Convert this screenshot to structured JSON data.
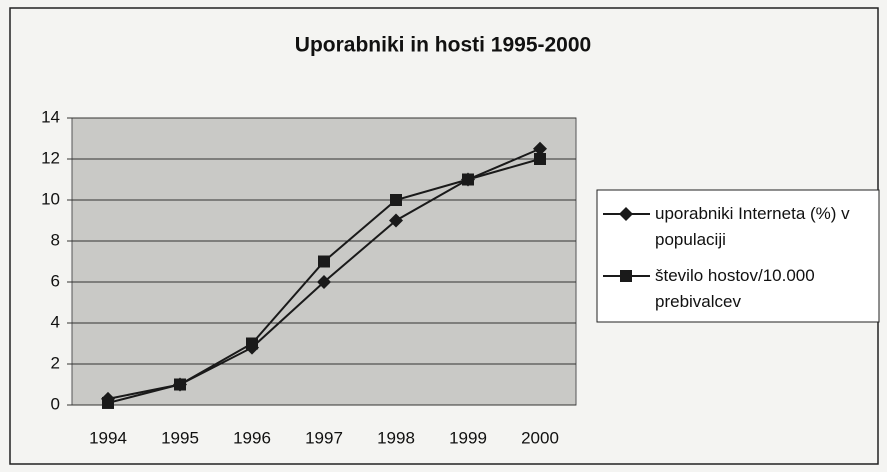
{
  "chart_data": {
    "type": "line",
    "title": "Uporabniki in hosti 1995-2000",
    "categories": [
      "1994",
      "1995",
      "1996",
      "1997",
      "1998",
      "1999",
      "2000"
    ],
    "series": [
      {
        "name": "uporabniki Interneta (%) v populaciji",
        "color": "#1a1a1a",
        "marker": "diamond",
        "values": [
          0.3,
          1,
          2.8,
          6,
          9,
          11,
          12.5
        ]
      },
      {
        "name": "število hostov/10.000 prebivalcev",
        "color": "#1a1a1a",
        "marker": "square",
        "values": [
          0.1,
          1,
          3,
          7,
          10,
          11,
          12
        ]
      }
    ],
    "ylim": [
      0,
      14
    ],
    "yticks": [
      0,
      2,
      4,
      6,
      8,
      10,
      12,
      14
    ],
    "grid": true,
    "legend": "right"
  }
}
